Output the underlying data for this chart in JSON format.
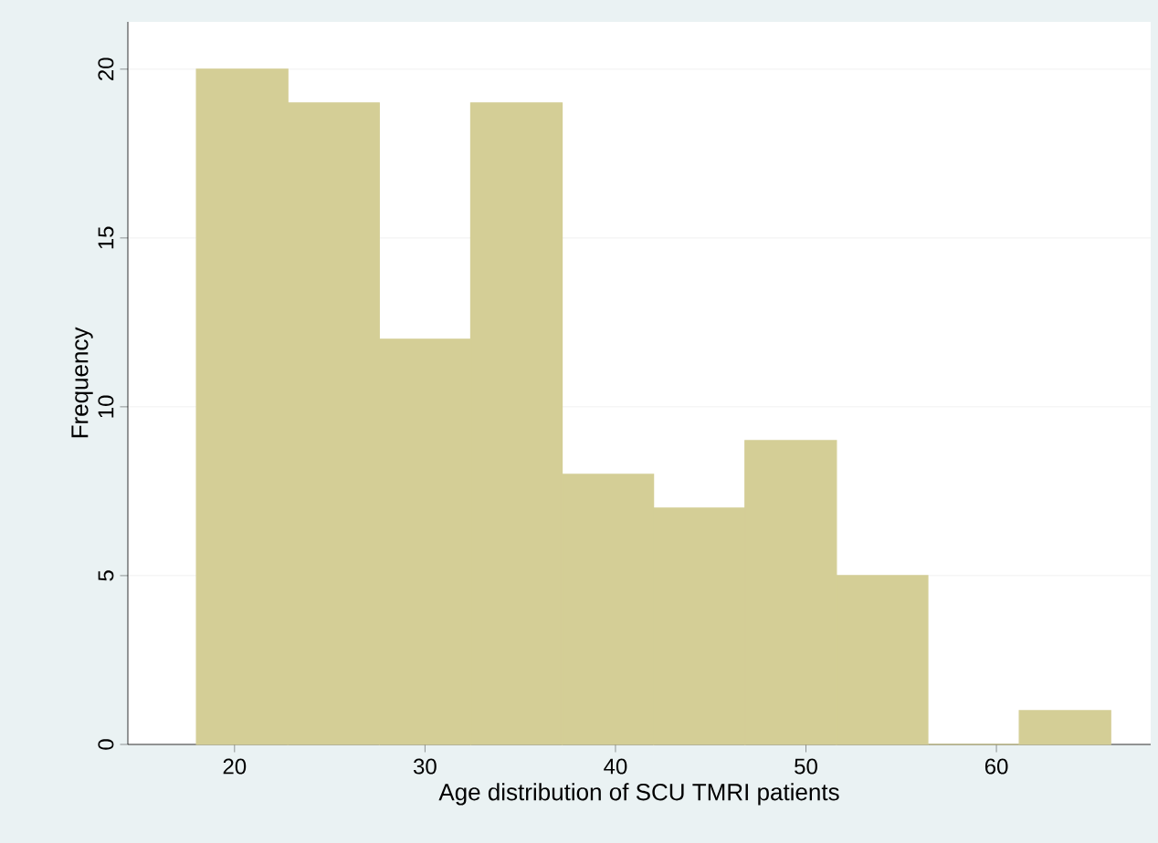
{
  "chart_data": {
    "type": "histogram",
    "xlabel": "Age distribution of SCU TMRI patients",
    "ylabel": "Frequency",
    "bins": [
      18,
      22.8,
      27.6,
      32.4,
      37.2,
      42,
      46.8,
      51.6,
      56.4,
      61.2,
      66
    ],
    "values": [
      20,
      19,
      12,
      19,
      8,
      7,
      9,
      5,
      0,
      1
    ],
    "color": "#d4ce96",
    "xlim": [
      14.4,
      68.1
    ],
    "ylim": [
      0,
      21.4
    ],
    "xticks": [
      20,
      30,
      40,
      50,
      60
    ],
    "yticks": [
      0,
      5,
      10,
      15,
      20
    ],
    "grid": "y"
  }
}
